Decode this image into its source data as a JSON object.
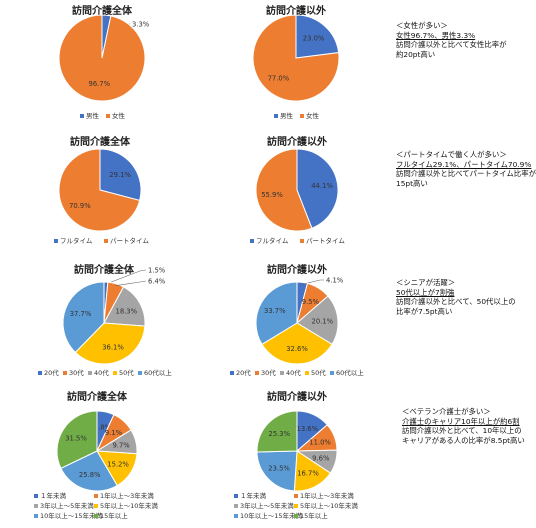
{
  "colors": {
    "blue": "#4472C4",
    "orange": "#ED7D31",
    "gray": "#A5A5A5",
    "yellow": "#FFC000",
    "lightblue": "#5B9BD5",
    "green": "#70AD47"
  },
  "chart_data": [
    {
      "type": "pie",
      "title": "訪問介護全体",
      "categories": [
        "男性",
        "女性"
      ],
      "values": [
        3.3,
        96.7
      ],
      "labels": [
        "3.3%",
        "96.7%"
      ]
    },
    {
      "type": "pie",
      "title": "訪問介護以外",
      "categories": [
        "男性",
        "女性"
      ],
      "values": [
        23.0,
        77.0
      ],
      "labels": [
        "23.0%",
        "77.0%"
      ]
    },
    {
      "type": "pie",
      "title": "訪問介護全体",
      "categories": [
        "フルタイム",
        "パートタイム"
      ],
      "values": [
        29.1,
        70.9
      ],
      "labels": [
        "29.1%",
        "70.9%"
      ]
    },
    {
      "type": "pie",
      "title": "訪問介護以外",
      "categories": [
        "フルタイム",
        "パートタイム"
      ],
      "values": [
        44.1,
        55.9
      ],
      "labels": [
        "44.1%",
        "55.9%"
      ]
    },
    {
      "type": "pie",
      "title": "訪問介護全体",
      "categories": [
        "20代",
        "30代",
        "40代",
        "50代",
        "60代以上"
      ],
      "values": [
        1.5,
        6.4,
        18.3,
        36.1,
        37.7
      ],
      "labels": [
        "1.5%",
        "6.4%",
        "18.3%",
        "36.1%",
        "37.7%"
      ]
    },
    {
      "type": "pie",
      "title": "訪問介護以外",
      "categories": [
        "20代",
        "30代",
        "40代",
        "50代",
        "60代以上"
      ],
      "values": [
        4.1,
        9.5,
        20.1,
        32.6,
        33.7
      ],
      "labels": [
        "4.1%",
        "9.5%",
        "20.1%",
        "32.6%",
        "33.7%"
      ]
    },
    {
      "type": "pie",
      "title": "訪問介護全体",
      "categories": [
        "１年未満",
        "1年以上～3年未満",
        "3年以上～5年未満",
        "5年以上～10年未満",
        "10年以上～15年未満",
        "15年以上"
      ],
      "values": [
        6.8,
        9.1,
        9.7,
        15.2,
        25.8,
        31.5
      ],
      "labels": [
        "6.8%",
        "9.1%",
        "9.7%",
        "15.2%",
        "25.8%",
        "31.5%"
      ]
    },
    {
      "type": "pie",
      "title": "訪問介護以外",
      "categories": [
        "１年未満",
        "1年以上～3年未満",
        "3年以上～5年未満",
        "5年以上～10年未満",
        "10年以上～15年未満",
        "15年以上"
      ],
      "values": [
        13.6,
        11.0,
        9.6,
        16.7,
        23.5,
        25.3
      ],
      "labels": [
        "13.6%",
        "11.0%",
        "9.6%",
        "16.7%",
        "23.5%",
        "25.3%"
      ]
    }
  ],
  "notes": [
    {
      "head": "＜女性が多い＞",
      "lines": [
        "女性96.7%、男性3.3%",
        "訪問介護以外と比べて女性比率が",
        "約20pt高い"
      ]
    },
    {
      "head": "＜パートタイムで働く人が多い＞",
      "lines": [
        "フルタイム29.1%、パートタイム70.9%",
        "訪問介護以外と比べてパートタイム比率が",
        "15pt高い"
      ]
    },
    {
      "head": "＜シニアが活躍＞",
      "lines": [
        "50代以上が7割強",
        "訪問介護以外と比べて、50代以上の",
        "比率が7.5pt高い"
      ]
    },
    {
      "head": "＜ベテラン介護士が多い＞",
      "lines": [
        "介護士のキャリア10年以上が約6割",
        "訪問介護以外と比べて、10年以上の",
        "キャリアがある人の比率が8.5pt高い"
      ]
    }
  ]
}
